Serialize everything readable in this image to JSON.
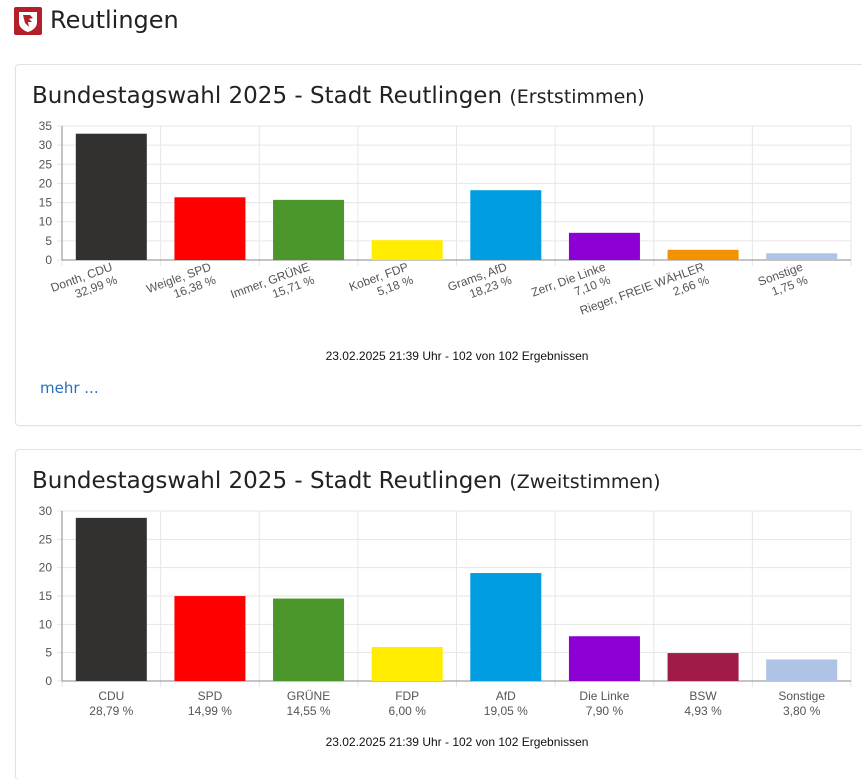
{
  "header": {
    "site_title": "Reutlingen",
    "logo_icon": "city-crest-icon"
  },
  "cards": [
    {
      "title": "Bundestagswahl 2025 - Stadt Reutlingen",
      "subtitle": "(Erststimmen)",
      "more_link": "mehr ..."
    },
    {
      "title": "Bundestagswahl 2025 - Stadt Reutlingen",
      "subtitle": "(Zweitstimmen)"
    }
  ],
  "chart_data": [
    {
      "type": "bar",
      "title": "Bundestagswahl 2025 - Stadt Reutlingen (Erststimmen)",
      "categories": [
        "Donth, CDU",
        "Weigle, SPD",
        "Immer, GRÜNE",
        "Kober, FDP",
        "Grams, AfD",
        "Zerr, Die Linke",
        "Rieger, FREIE WÄHLER",
        "Sonstige"
      ],
      "value_labels": [
        "32,99 %",
        "16,38 %",
        "15,71 %",
        "5,18 %",
        "18,23 %",
        "7,10 %",
        "2,66 %",
        "1,75 %"
      ],
      "values": [
        32.99,
        16.38,
        15.71,
        5.18,
        18.23,
        7.1,
        2.66,
        1.75
      ],
      "colors": [
        "#333130",
        "#ff0000",
        "#4a962a",
        "#ffec00",
        "#009ee0",
        "#8d00d4",
        "#f29200",
        "#aec3e6"
      ],
      "ylim": [
        0,
        35
      ],
      "yticks": [
        0,
        5,
        10,
        15,
        20,
        25,
        30,
        35
      ],
      "label_rotation": "rotated",
      "footnote": "23.02.2025 21:39 Uhr - 102 von 102 Ergebnissen"
    },
    {
      "type": "bar",
      "title": "Bundestagswahl 2025 - Stadt Reutlingen (Zweitstimmen)",
      "categories": [
        "CDU",
        "SPD",
        "GRÜNE",
        "FDP",
        "AfD",
        "Die Linke",
        "BSW",
        "Sonstige"
      ],
      "value_labels": [
        "28,79 %",
        "14,99 %",
        "14,55 %",
        "6,00 %",
        "19,05 %",
        "7,90 %",
        "4,93 %",
        "3,80 %"
      ],
      "values": [
        28.79,
        14.99,
        14.55,
        6.0,
        19.05,
        7.9,
        4.93,
        3.8
      ],
      "colors": [
        "#333130",
        "#ff0000",
        "#4a962a",
        "#ffec00",
        "#009ee0",
        "#8d00d4",
        "#a01b48",
        "#aec3e6"
      ],
      "ylim": [
        0,
        30
      ],
      "yticks": [
        0,
        5,
        10,
        15,
        20,
        25,
        30
      ],
      "label_rotation": "horizontal",
      "footnote": "23.02.2025 21:39 Uhr - 102 von 102 Ergebnissen"
    }
  ]
}
